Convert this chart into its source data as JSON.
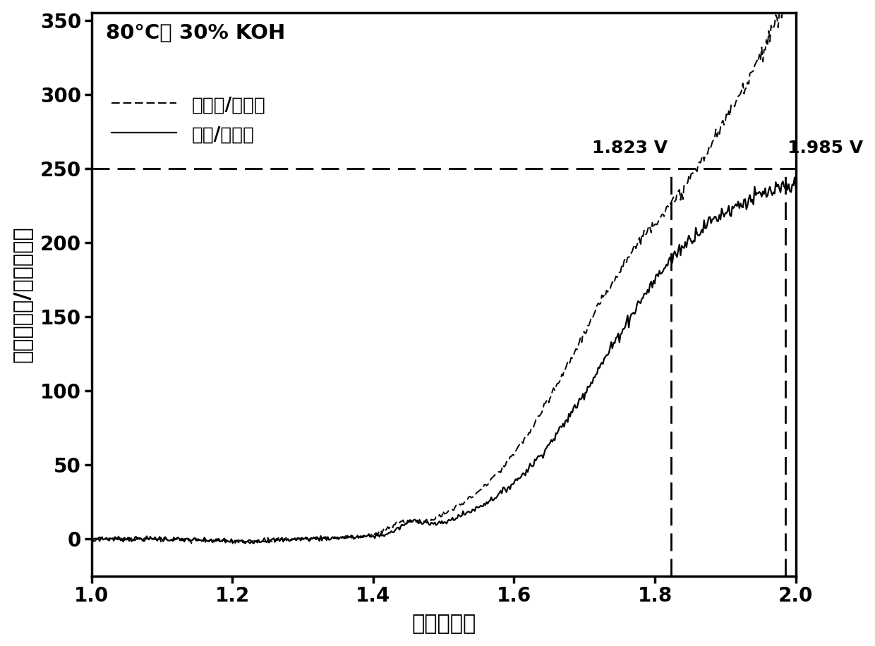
{
  "title_text": "80°C， 30% KOH",
  "xlabel": "电压（伏）",
  "ylabel": "电流（毫安/平方厘米）",
  "legend_solid": "镍网/雷尼镍",
  "legend_dashed": "镍铁网/雷尼镍",
  "xlim": [
    1.0,
    2.0
  ],
  "ylim": [
    -25,
    355
  ],
  "yticks": [
    0,
    50,
    100,
    150,
    200,
    250,
    300,
    350
  ],
  "xticks": [
    1.0,
    1.2,
    1.4,
    1.6,
    1.8,
    2.0
  ],
  "hline_y": 250,
  "vline1_x": 1.823,
  "vline2_x": 1.985,
  "annotation1": "1.823 V",
  "annotation2": "1.985 V",
  "line_color": "#000000",
  "background_color": "#ffffff",
  "figsize": [
    12.4,
    9.16
  ],
  "dpi": 100
}
